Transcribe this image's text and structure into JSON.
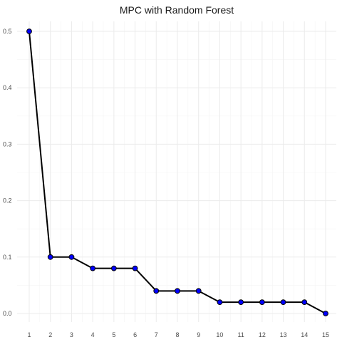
{
  "chart_data": {
    "type": "line",
    "title": "MPC with Random Forest",
    "xlabel": "",
    "ylabel": "",
    "x": [
      1,
      2,
      3,
      4,
      5,
      6,
      7,
      8,
      9,
      10,
      11,
      12,
      13,
      14,
      15
    ],
    "series": [
      {
        "values": [
          0.5,
          0.1,
          0.1,
          0.08,
          0.08,
          0.08,
          0.04,
          0.04,
          0.04,
          0.02,
          0.02,
          0.02,
          0.02,
          0.02,
          0.0
        ]
      }
    ],
    "x_ticks": [
      "1",
      "2",
      "3",
      "4",
      "5",
      "6",
      "7",
      "8",
      "9",
      "10",
      "11",
      "12",
      "13",
      "14",
      "15"
    ],
    "y_ticks": [
      "0.0",
      "0.1",
      "0.2",
      "0.3",
      "0.4",
      "0.5"
    ],
    "xlim": [
      1,
      15
    ],
    "ylim": [
      0,
      0.5
    ],
    "grid": true,
    "legend": "none",
    "colors": {
      "line": "#000000",
      "point_fill": "#0000ff",
      "grid": "#ebebeb"
    }
  }
}
